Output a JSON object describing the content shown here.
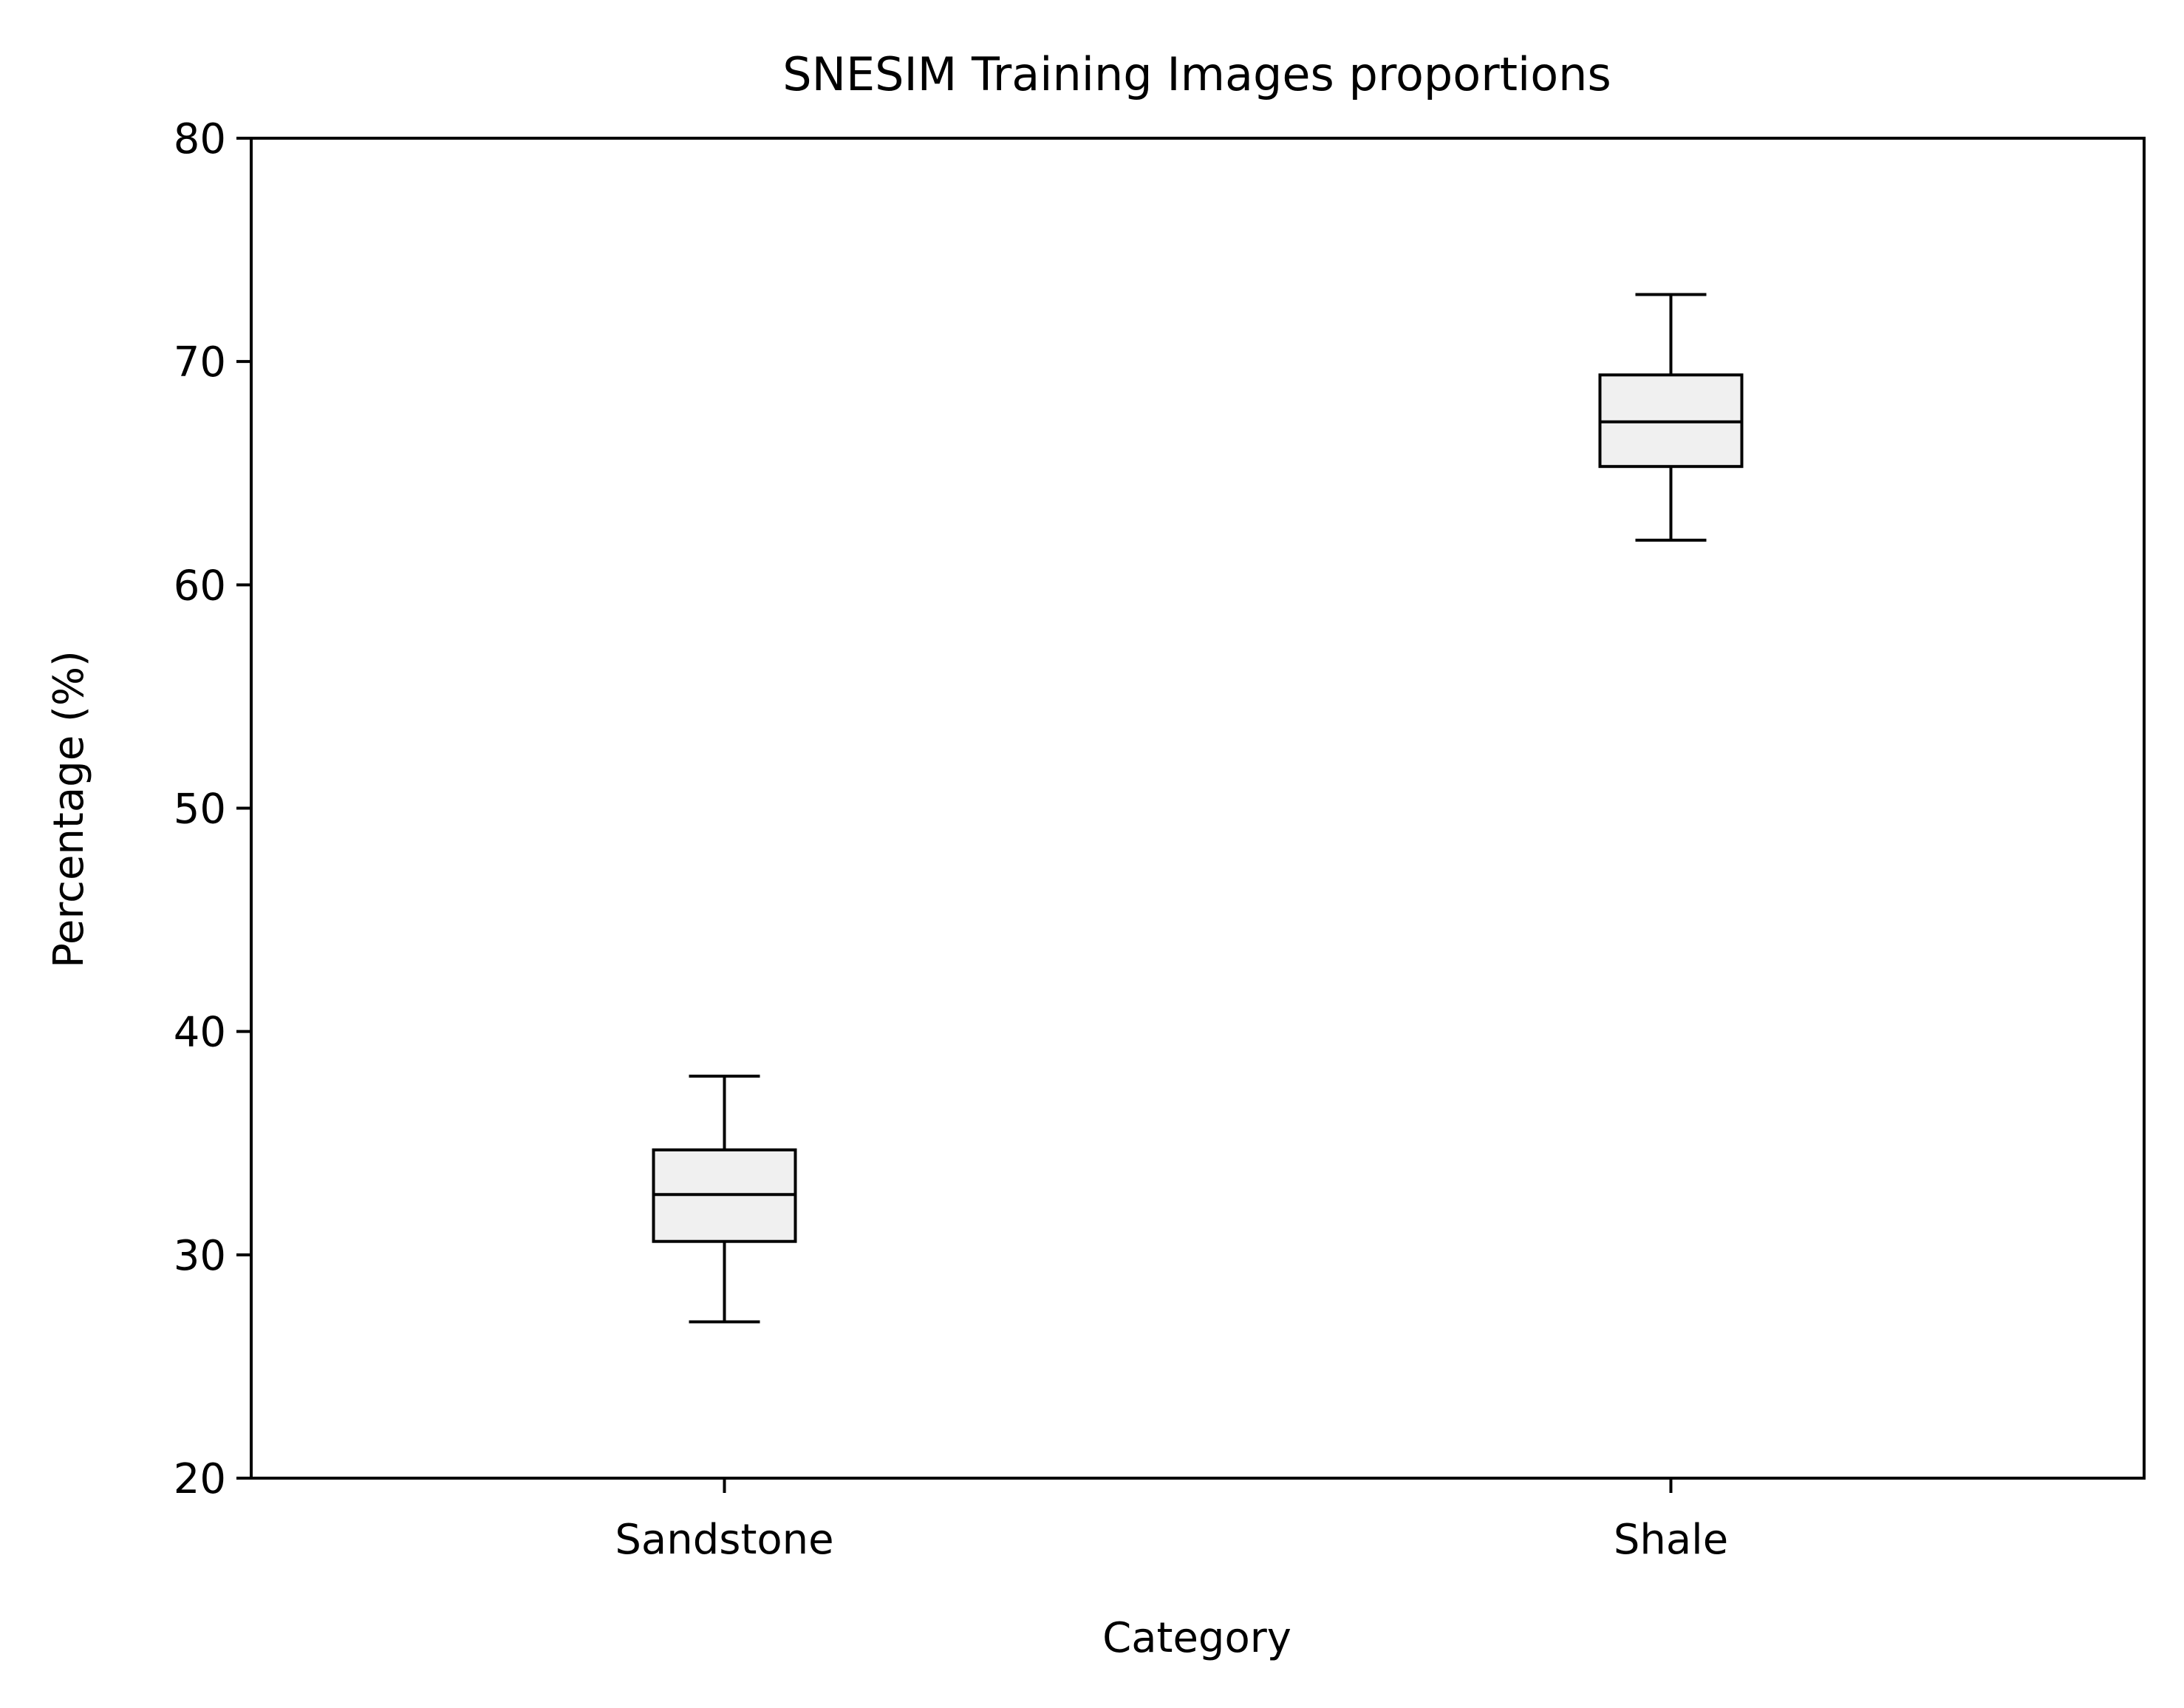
{
  "chart_data": {
    "type": "box",
    "title": "SNESIM Training Images proportions",
    "xlabel": "Category",
    "ylabel": "Percentage (%)",
    "ylim": [
      20,
      80
    ],
    "yticks": [
      20,
      30,
      40,
      50,
      60,
      70,
      80
    ],
    "categories": [
      "Sandstone",
      "Shale"
    ],
    "boxes": [
      {
        "category": "Sandstone",
        "whisker_low": 27,
        "q1": 30.6,
        "median": 32.7,
        "q3": 34.7,
        "whisker_high": 38
      },
      {
        "category": "Shale",
        "whisker_low": 62,
        "q1": 65.3,
        "median": 67.3,
        "q3": 69.4,
        "whisker_high": 73
      }
    ],
    "box_fill": "#f0f0f0",
    "line_color": "#000000",
    "grid": false,
    "legend": "none"
  }
}
